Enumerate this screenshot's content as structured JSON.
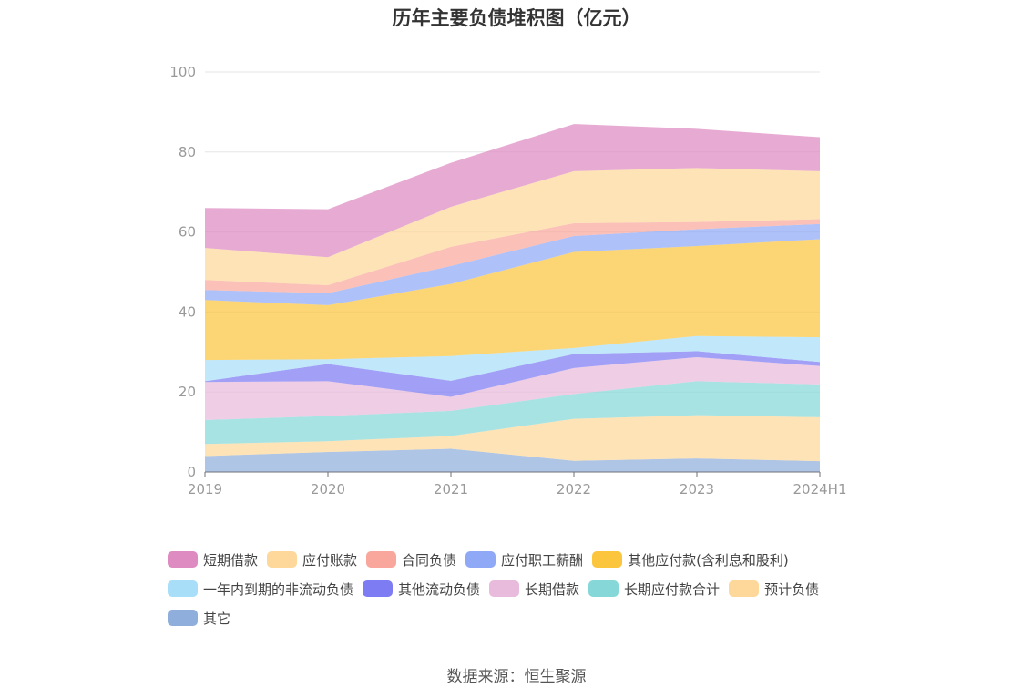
{
  "chart_data": {
    "type": "area",
    "title": "历年主要负债堆积图（亿元）",
    "x": [
      "2019",
      "2020",
      "2021",
      "2022",
      "2023",
      "2024H1"
    ],
    "ylim": [
      0,
      100
    ],
    "yticks": [
      "0",
      "20",
      "40",
      "60",
      "80",
      "100"
    ],
    "grid": true,
    "legend_position": "bottom",
    "series": [
      {
        "name": "其它",
        "color": "#8FAEDB",
        "values": [
          4.0,
          5.0,
          5.8,
          2.8,
          3.4,
          2.7
        ]
      },
      {
        "name": "预计负债",
        "color": "#FDD89A",
        "values": [
          3.0,
          2.7,
          3.2,
          10.5,
          10.8,
          11.0
        ]
      },
      {
        "name": "长期应付款合计",
        "color": "#86D8D8",
        "values": [
          6.0,
          6.3,
          6.3,
          6.2,
          8.5,
          8.2
        ]
      },
      {
        "name": "长期借款",
        "color": "#E8BADB",
        "values": [
          9.5,
          8.7,
          3.5,
          6.5,
          6.0,
          4.6
        ]
      },
      {
        "name": "其他流动负债",
        "color": "#7E7CF2",
        "values": [
          0.2,
          4.3,
          4.0,
          3.5,
          1.5,
          1.0
        ]
      },
      {
        "name": "一年内到期的非流动负债",
        "color": "#A8DEF8",
        "values": [
          5.3,
          1.2,
          6.2,
          1.5,
          3.8,
          6.2
        ]
      },
      {
        "name": "其他应付款(含利息和股利)",
        "color": "#FBC53E",
        "values": [
          15.0,
          13.5,
          18.0,
          24.0,
          22.5,
          24.5
        ]
      },
      {
        "name": "应付职工薪酬",
        "color": "#8FA9F7",
        "values": [
          2.5,
          3.0,
          4.5,
          4.0,
          4.2,
          3.8
        ]
      },
      {
        "name": "合同负债",
        "color": "#F9A79C",
        "values": [
          2.5,
          2.0,
          4.8,
          3.2,
          1.8,
          1.2
        ]
      },
      {
        "name": "应付账款",
        "color": "#FDD89A",
        "values": [
          8.0,
          7.0,
          10.0,
          13.0,
          13.5,
          12.0
        ]
      },
      {
        "name": "短期借款",
        "color": "#DE8BC2",
        "values": [
          10.0,
          12.0,
          11.0,
          11.8,
          9.8,
          8.5
        ]
      }
    ]
  },
  "legend": {
    "rows": [
      [
        {
          "label": "短期借款",
          "color": "#DE8BC2"
        },
        {
          "label": "应付账款",
          "color": "#FDD89A"
        },
        {
          "label": "合同负债",
          "color": "#F9A79C"
        },
        {
          "label": "应付职工薪酬",
          "color": "#8FA9F7"
        },
        {
          "label": "其他应付款(含利息和股利)",
          "color": "#FBC53E"
        }
      ],
      [
        {
          "label": "一年内到期的非流动负债",
          "color": "#A8DEF8"
        },
        {
          "label": "其他流动负债",
          "color": "#7E7CF2"
        },
        {
          "label": "长期借款",
          "color": "#E8BADB"
        },
        {
          "label": "长期应付款合计",
          "color": "#86D8D8"
        },
        {
          "label": "预计负债",
          "color": "#FDD89A"
        }
      ],
      [
        {
          "label": "其它",
          "color": "#8FAEDB"
        }
      ]
    ]
  },
  "source": "数据来源：恒生聚源"
}
